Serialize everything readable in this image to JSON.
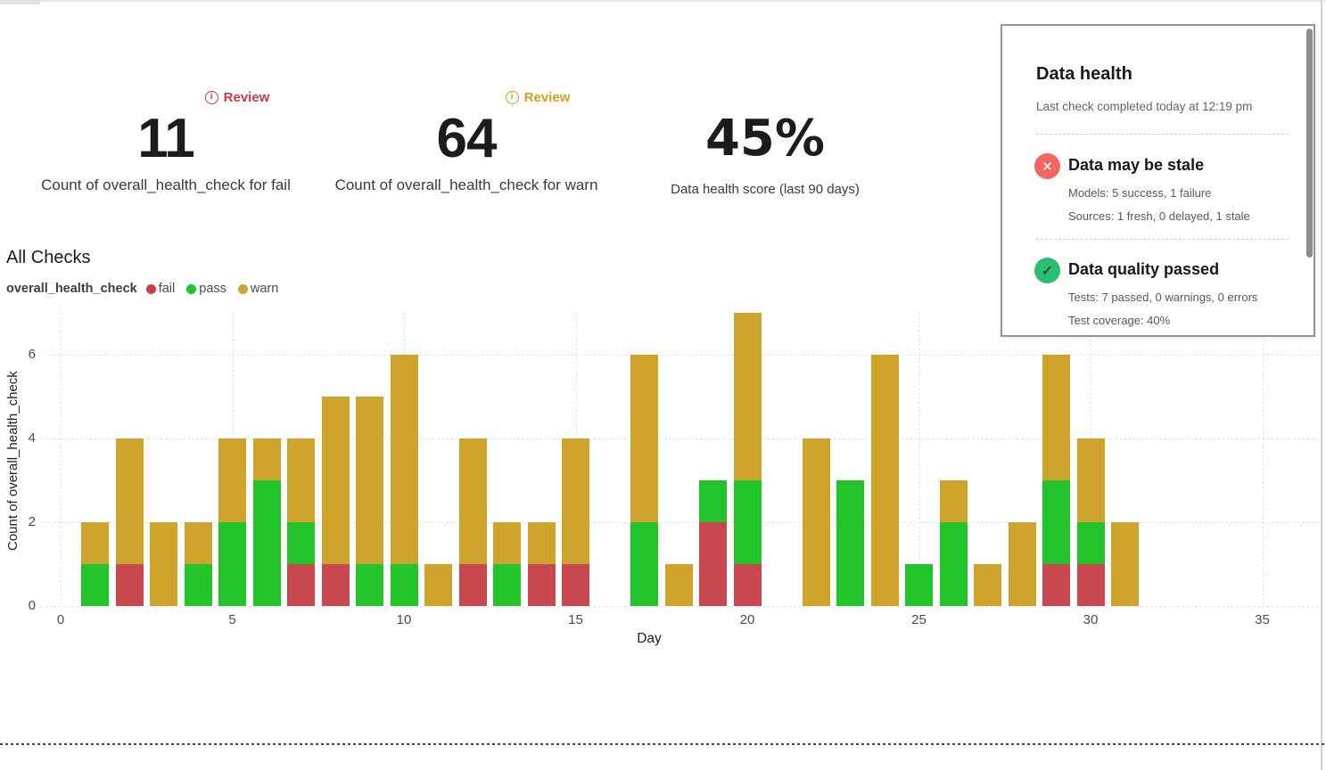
{
  "metrics": [
    {
      "badge": "Review",
      "badge_color": "#c23a4b",
      "value": "11",
      "label": "Count of overall_health_check for fail"
    },
    {
      "badge": "Review",
      "badge_color": "#cfa226",
      "value": "64",
      "label": "Count of overall_health_check for warn"
    },
    {
      "value": "45%",
      "label": "Data health score (last 90 days)"
    }
  ],
  "section": {
    "title": "All Checks",
    "legend_series": "overall_health_check",
    "legend": [
      {
        "label": "fail",
        "color": "#cb3e4c"
      },
      {
        "label": "pass",
        "color": "#23c32c"
      },
      {
        "label": "warn",
        "color": "#cfa42c"
      }
    ]
  },
  "chart_data": {
    "type": "bar",
    "stacked": true,
    "title": "All Checks",
    "xlabel": "Day",
    "ylabel": "Count of overall_health_check",
    "xlim": [
      0,
      36
    ],
    "ylim": [
      0,
      7
    ],
    "x_ticks": [
      0,
      5,
      10,
      15,
      20,
      25,
      30,
      35
    ],
    "y_ticks": [
      0,
      2,
      4,
      6
    ],
    "grid": "dotted",
    "stack_order": [
      "fail",
      "pass",
      "warn"
    ],
    "series_colors": {
      "fail": "#c9484f",
      "pass": "#23c32c",
      "warn": "#cfa42c"
    },
    "days": [
      {
        "day": 1,
        "fail": 0,
        "pass": 1,
        "warn": 1
      },
      {
        "day": 2,
        "fail": 1,
        "pass": 0,
        "warn": 3
      },
      {
        "day": 3,
        "fail": 0,
        "pass": 0,
        "warn": 2
      },
      {
        "day": 4,
        "fail": 0,
        "pass": 1,
        "warn": 1
      },
      {
        "day": 5,
        "fail": 0,
        "pass": 2,
        "warn": 2
      },
      {
        "day": 6,
        "fail": 0,
        "pass": 3,
        "warn": 1
      },
      {
        "day": 7,
        "fail": 1,
        "pass": 1,
        "warn": 2
      },
      {
        "day": 8,
        "fail": 1,
        "pass": 0,
        "warn": 4
      },
      {
        "day": 9,
        "fail": 0,
        "pass": 1,
        "warn": 4
      },
      {
        "day": 10,
        "fail": 0,
        "pass": 1,
        "warn": 5
      },
      {
        "day": 11,
        "fail": 0,
        "pass": 0,
        "warn": 1
      },
      {
        "day": 12,
        "fail": 1,
        "pass": 0,
        "warn": 3
      },
      {
        "day": 13,
        "fail": 0,
        "pass": 1,
        "warn": 1
      },
      {
        "day": 14,
        "fail": 1,
        "pass": 0,
        "warn": 1
      },
      {
        "day": 15,
        "fail": 1,
        "pass": 0,
        "warn": 3
      },
      {
        "day": 17,
        "fail": 0,
        "pass": 2,
        "warn": 4
      },
      {
        "day": 18,
        "fail": 0,
        "pass": 0,
        "warn": 1
      },
      {
        "day": 19,
        "fail": 2,
        "pass": 1,
        "warn": 0
      },
      {
        "day": 20,
        "fail": 1,
        "pass": 2,
        "warn": 4
      },
      {
        "day": 22,
        "fail": 0,
        "pass": 0,
        "warn": 4
      },
      {
        "day": 23,
        "fail": 0,
        "pass": 3,
        "warn": 0
      },
      {
        "day": 24,
        "fail": 0,
        "pass": 0,
        "warn": 6
      },
      {
        "day": 25,
        "fail": 0,
        "pass": 1,
        "warn": 0
      },
      {
        "day": 26,
        "fail": 0,
        "pass": 2,
        "warn": 1
      },
      {
        "day": 27,
        "fail": 0,
        "pass": 0,
        "warn": 1
      },
      {
        "day": 28,
        "fail": 0,
        "pass": 0,
        "warn": 2
      },
      {
        "day": 29,
        "fail": 1,
        "pass": 2,
        "warn": 3
      },
      {
        "day": 30,
        "fail": 1,
        "pass": 1,
        "warn": 2
      },
      {
        "day": 31,
        "fail": 0,
        "pass": 0,
        "warn": 2
      }
    ]
  },
  "data_health_panel": {
    "title": "Data health",
    "subtitle": "Last check completed today at 12:19 pm",
    "items": [
      {
        "icon": "x-circle-icon",
        "color": "#f0685f",
        "title": "Data may be stale",
        "lines": [
          "Models: 5 success, 1 failure",
          "Sources: 1 fresh, 0 delayed, 1 stale"
        ]
      },
      {
        "icon": "check-circle-icon",
        "color": "#2bbd73",
        "title": "Data quality passed",
        "lines": [
          "Tests: 7 passed, 0 warnings, 0 errors",
          "Test coverage: 40%"
        ]
      }
    ]
  }
}
